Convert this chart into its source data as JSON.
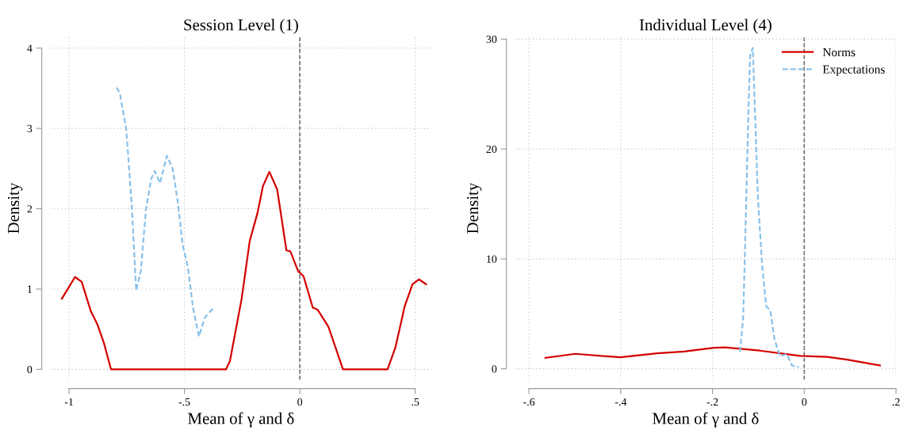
{
  "chart_data": [
    {
      "type": "line",
      "title": "Session Level (1)",
      "xlabel": "Mean of γ and δ",
      "ylabel": "Density",
      "xlim": [
        -1.08,
        0.57
      ],
      "ylim": [
        -0.13,
        4.14
      ],
      "xticks": [
        {
          "value": -1,
          "label": "-1"
        },
        {
          "value": -0.5,
          "label": "-.5"
        },
        0,
        {
          "value": 0.5,
          "label": ".5"
        }
      ],
      "yticks": [
        0,
        1,
        2,
        3,
        4
      ],
      "grid": true,
      "legend": false,
      "ref_lines": [
        {
          "axis": "x",
          "value": 0,
          "color": "#666666",
          "line_style": "dashed"
        }
      ],
      "series": [
        {
          "color": "#d40000",
          "line_style": "solid",
          "x": [
            -1.031,
            -0.974,
            -0.945,
            -0.905,
            -0.877,
            -0.849,
            -0.818,
            -0.32,
            -0.303,
            -0.252,
            -0.217,
            -0.183,
            -0.16,
            -0.132,
            -0.098,
            -0.058,
            -0.041,
            -0.007,
            0.016,
            0.056,
            0.078,
            0.124,
            0.187,
            0.38,
            0.414,
            0.454,
            0.488,
            0.516,
            0.547
          ],
          "values": [
            0.88,
            1.15,
            1.09,
            0.72,
            0.56,
            0.33,
            0,
            0,
            0.1,
            0.88,
            1.6,
            1.95,
            2.28,
            2.46,
            2.24,
            1.48,
            1.47,
            1.22,
            1.16,
            0.77,
            0.74,
            0.53,
            0,
            0,
            0.27,
            0.78,
            1.06,
            1.12,
            1.06
          ]
        },
        {
          "color": "#87c1ea",
          "line_style": "dashed",
          "x": [
            -0.794,
            -0.78,
            -0.752,
            -0.729,
            -0.709,
            -0.689,
            -0.667,
            -0.644,
            -0.629,
            -0.606,
            -0.576,
            -0.551,
            -0.53,
            -0.508,
            -0.485,
            -0.462,
            -0.437,
            -0.411,
            -0.371
          ],
          "values": [
            3.51,
            3.44,
            2.99,
            2.08,
            0.98,
            1.22,
            1.98,
            2.37,
            2.47,
            2.32,
            2.66,
            2.5,
            2.11,
            1.56,
            1.27,
            0.75,
            0.41,
            0.65,
            0.77
          ]
        }
      ]
    },
    {
      "type": "line",
      "title": "Individual Level (4)",
      "xlabel": "Mean of γ and δ",
      "ylabel": "Density",
      "xlim": [
        -0.63,
        0.2
      ],
      "ylim": [
        -1,
        30.2
      ],
      "xticks": [
        {
          "value": -0.6,
          "label": "-.6"
        },
        {
          "value": -0.4,
          "label": "-.4"
        },
        {
          "value": -0.2,
          "label": "-.2"
        },
        0,
        {
          "value": 0.2,
          "label": ".2"
        }
      ],
      "yticks": [
        0,
        10,
        20,
        30
      ],
      "grid": true,
      "legend": "top right",
      "ref_lines": [
        {
          "axis": "x",
          "value": 0,
          "color": "#666666",
          "line_style": "dashed"
        }
      ],
      "series": [
        {
          "name": "Norms",
          "color": "#d40000",
          "line_style": "solid",
          "x": [
            -0.564,
            -0.499,
            -0.401,
            -0.321,
            -0.262,
            -0.197,
            -0.173,
            -0.097,
            -0.009,
            0.05,
            0.091,
            0.165
          ],
          "values": [
            1.0,
            1.36,
            1.04,
            1.4,
            1.57,
            1.91,
            1.94,
            1.65,
            1.17,
            1.08,
            0.84,
            0.3
          ]
        },
        {
          "name": "Expectations",
          "color": "#87c1ea",
          "line_style": "dashed",
          "x": [
            -0.14,
            -0.133,
            -0.127,
            -0.122,
            -0.118,
            -0.112,
            -0.108,
            -0.101,
            -0.092,
            -0.083,
            -0.074,
            -0.065,
            -0.053,
            -0.038,
            -0.027,
            -0.012
          ],
          "values": [
            1.53,
            4.7,
            14.4,
            22.9,
            28.5,
            29.2,
            24.1,
            15.6,
            9.5,
            5.7,
            5.3,
            2.7,
            1.14,
            1.34,
            0.31,
            0.15
          ]
        }
      ]
    }
  ]
}
